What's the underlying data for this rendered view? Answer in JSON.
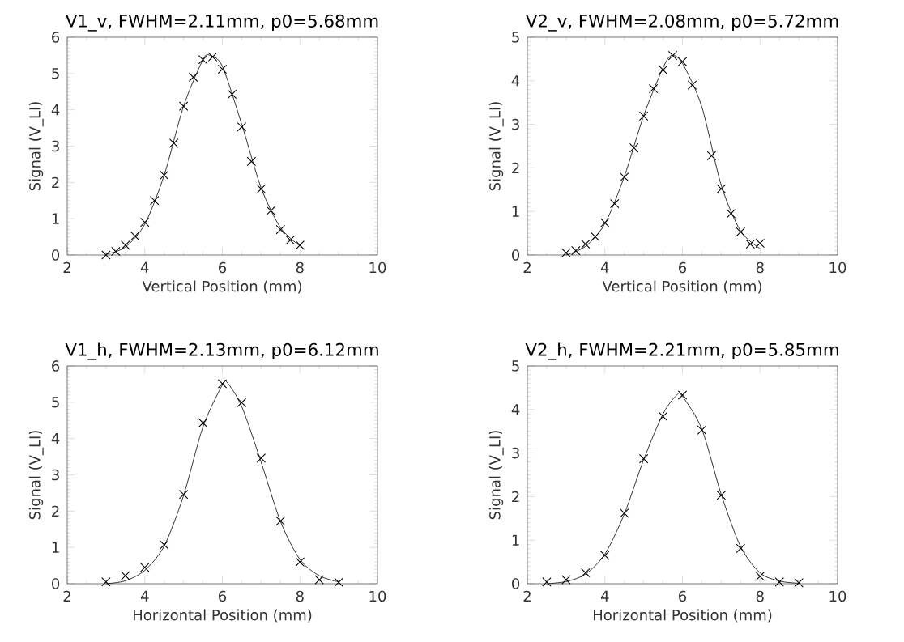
{
  "chart_data": [
    {
      "type": "scatter",
      "title": "V1_v, FWHM=2.11mm, p0=5.68mm",
      "xlabel": "Vertical Position (mm)",
      "ylabel": "Signal (V_LI)",
      "xlim": [
        2,
        10
      ],
      "ylim": [
        0,
        6
      ],
      "xticks": [
        2,
        4,
        6,
        8,
        10
      ],
      "yticks": [
        0,
        1,
        2,
        3,
        4,
        5,
        6
      ],
      "series": [
        {
          "marker": "cross",
          "color": "#000000",
          "x": [
            3,
            3.25,
            3.5,
            3.75,
            4,
            4.25,
            4.5,
            4.75,
            5,
            5.25,
            5.5,
            5.75,
            6,
            6.25,
            6.5,
            6.75,
            7,
            7.25,
            7.5,
            7.75,
            8
          ],
          "values": [
            0.0,
            0.1,
            0.27,
            0.52,
            0.9,
            1.5,
            2.2,
            3.08,
            4.1,
            4.9,
            5.38,
            5.46,
            5.12,
            4.43,
            3.53,
            2.58,
            1.82,
            1.22,
            0.7,
            0.41,
            0.27
          ]
        },
        {
          "type": "line",
          "marker": "none",
          "line_style": "solid",
          "color": "#000000",
          "x": [
            3,
            3.5,
            4,
            4.5,
            5,
            5.5,
            5.68,
            6,
            6.5,
            7,
            7.5,
            8
          ],
          "values": [
            0.02,
            0.22,
            0.85,
            2.2,
            4.1,
            5.38,
            5.5,
            5.2,
            3.6,
            1.85,
            0.75,
            0.25
          ]
        }
      ]
    },
    {
      "type": "scatter",
      "title": "V2_v, FWHM=2.08mm, p0=5.72mm",
      "xlabel": "Vertical Position (mm)",
      "ylabel": "Signal (V_LI)",
      "xlim": [
        2,
        10
      ],
      "ylim": [
        0,
        5
      ],
      "xticks": [
        2,
        4,
        6,
        8,
        10
      ],
      "yticks": [
        0,
        1,
        2,
        3,
        4,
        5
      ],
      "series": [
        {
          "marker": "cross",
          "color": "#000000",
          "x": [
            3,
            3.25,
            3.5,
            3.75,
            4,
            4.25,
            4.5,
            4.75,
            5,
            5.25,
            5.5,
            5.75,
            6,
            6.25,
            6.75,
            7,
            7.25,
            7.5,
            7.75,
            8
          ],
          "values": [
            0.05,
            0.1,
            0.25,
            0.42,
            0.74,
            1.18,
            1.79,
            2.46,
            3.19,
            3.82,
            4.25,
            4.58,
            4.44,
            3.9,
            2.28,
            1.52,
            0.95,
            0.53,
            0.25,
            0.27
          ]
        },
        {
          "type": "line",
          "marker": "none",
          "line_style": "solid",
          "color": "#000000",
          "x": [
            3,
            3.5,
            4,
            4.5,
            5,
            5.5,
            5.72,
            6,
            6.5,
            7,
            7.5,
            8
          ],
          "values": [
            0.0,
            0.2,
            0.72,
            1.8,
            3.2,
            4.3,
            4.58,
            4.4,
            3.4,
            1.6,
            0.55,
            0.15
          ]
        }
      ]
    },
    {
      "type": "scatter",
      "title": "V1_h, FWHM=2.13mm, p0=6.12mm",
      "xlabel": "Horizontal Position (mm)",
      "ylabel": "Signal (V_LI)",
      "xlim": [
        2,
        10
      ],
      "ylim": [
        0,
        6
      ],
      "xticks": [
        2,
        4,
        6,
        8,
        10
      ],
      "yticks": [
        0,
        1,
        2,
        3,
        4,
        5,
        6
      ],
      "series": [
        {
          "marker": "cross",
          "color": "#000000",
          "x": [
            3,
            3.5,
            4,
            4.5,
            5,
            5.5,
            6,
            6.5,
            7,
            7.5,
            8,
            8.5,
            9
          ],
          "values": [
            0.05,
            0.22,
            0.45,
            1.07,
            2.46,
            4.43,
            5.51,
            4.99,
            3.46,
            1.73,
            0.6,
            0.11,
            0.04
          ]
        },
        {
          "type": "line",
          "marker": "none",
          "line_style": "solid",
          "color": "#000000",
          "x": [
            3,
            3.5,
            4,
            4.5,
            5,
            5.5,
            6,
            6.12,
            6.5,
            7,
            7.5,
            8,
            8.5,
            9
          ],
          "values": [
            0.0,
            0.08,
            0.37,
            1.04,
            2.43,
            4.32,
            5.48,
            5.55,
            4.88,
            3.35,
            1.71,
            0.67,
            0.22,
            0.05
          ]
        }
      ]
    },
    {
      "type": "scatter",
      "title": "V2_h, FWHM=2.21mm, p0=5.85mm",
      "xlabel": "Horizontal Position (mm)",
      "ylabel": "Signal (V_LI)",
      "xlim": [
        2,
        10
      ],
      "ylim": [
        0,
        5
      ],
      "xticks": [
        2,
        4,
        6,
        8,
        10
      ],
      "yticks": [
        0,
        1,
        2,
        3,
        4,
        5
      ],
      "series": [
        {
          "marker": "cross",
          "color": "#000000",
          "x": [
            2.5,
            3,
            3.5,
            4,
            4.5,
            5,
            5.5,
            6,
            6.5,
            7,
            7.5,
            8,
            8.5,
            9
          ],
          "values": [
            0.04,
            0.09,
            0.25,
            0.65,
            1.62,
            2.87,
            3.84,
            4.33,
            3.53,
            2.03,
            0.81,
            0.17,
            0.04,
            0.02
          ]
        },
        {
          "type": "line",
          "marker": "none",
          "line_style": "solid",
          "color": "#000000",
          "x": [
            2.5,
            3,
            3.5,
            4,
            4.5,
            5,
            5.5,
            5.85,
            6,
            6.5,
            7,
            7.5,
            8,
            8.5,
            9
          ],
          "values": [
            0.0,
            0.05,
            0.22,
            0.68,
            1.6,
            2.85,
            3.9,
            4.33,
            4.3,
            3.55,
            2.05,
            0.85,
            0.25,
            0.06,
            0.01
          ]
        }
      ]
    }
  ]
}
